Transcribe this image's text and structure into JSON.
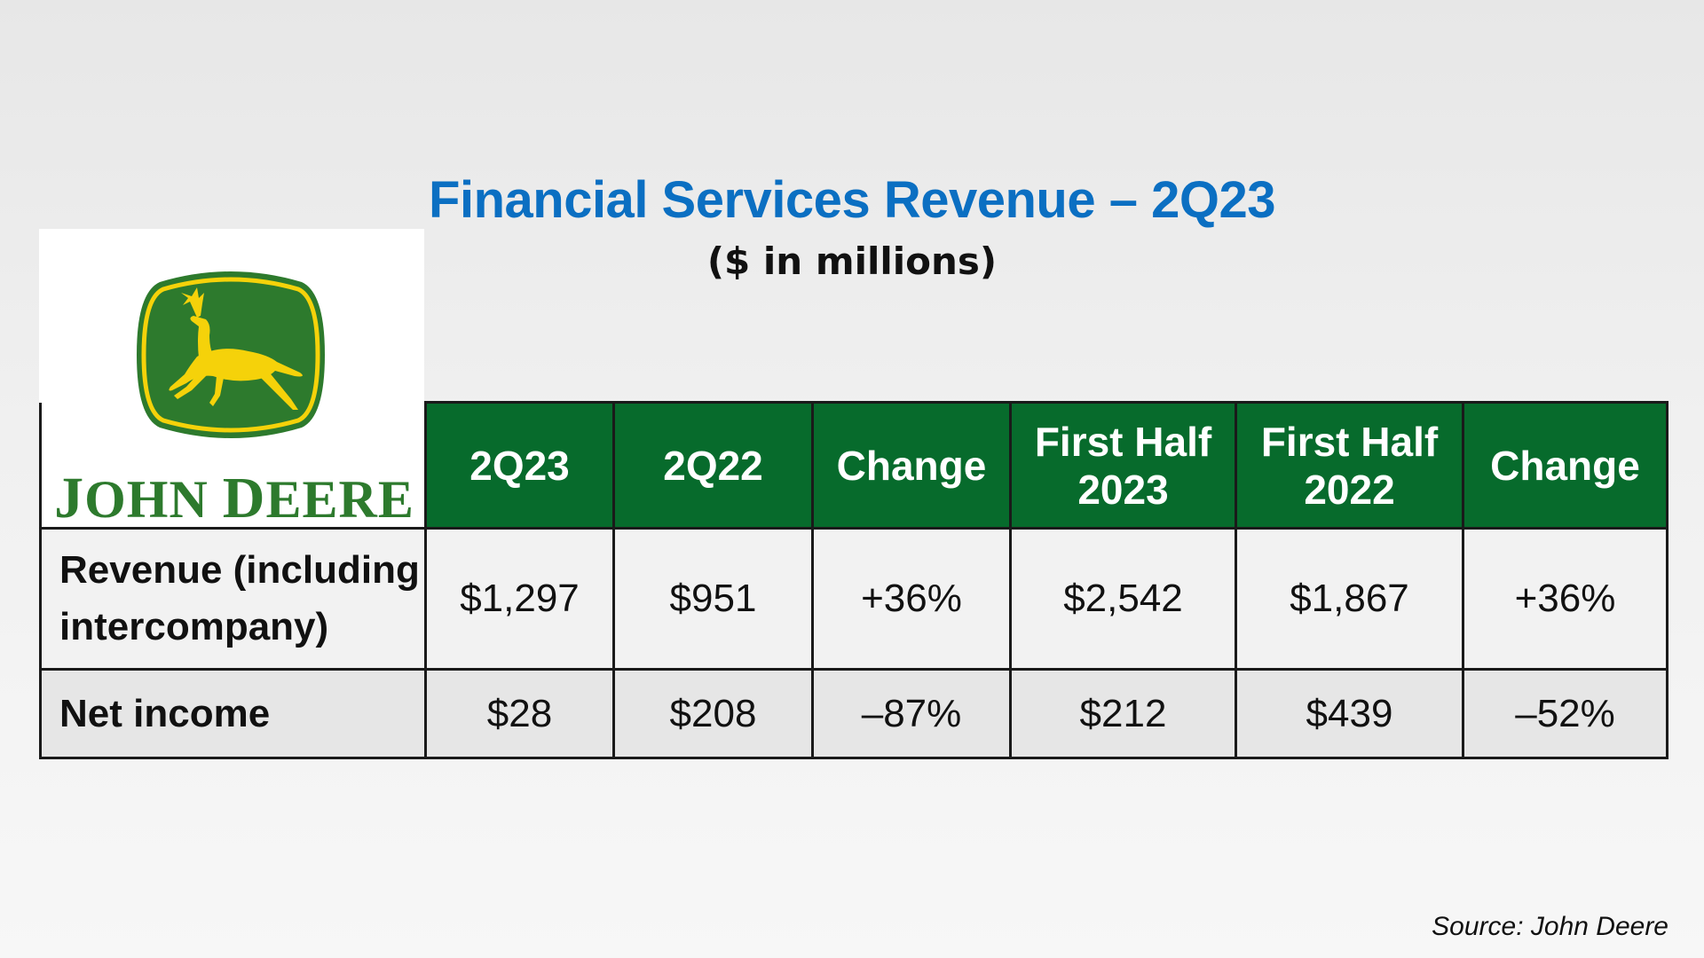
{
  "colors": {
    "title_blue": "#0b6fc2",
    "header_green": "#076b2c",
    "logo_green": "#2d7a2d",
    "logo_yellow": "#f5d20a"
  },
  "logo": {
    "icon": "leaping-deer-logo-icon",
    "brand": "JOHN DEERE",
    "brand_j": "J",
    "brand_ohn": "OHN ",
    "brand_d": "D",
    "brand_eere": "EERE"
  },
  "chart_data": {
    "type": "table",
    "title": "Financial Services Revenue – 2Q23",
    "subtitle": "($ in millions)",
    "columns": [
      "2Q23",
      "2Q22",
      "Change",
      "First Half 2023",
      "First Half 2022",
      "Change"
    ],
    "header_lines": [
      [
        "2Q23"
      ],
      [
        "2Q22"
      ],
      [
        "Change"
      ],
      [
        "First Half",
        "2023"
      ],
      [
        "First Half",
        "2022"
      ],
      [
        "Change"
      ]
    ],
    "rows": [
      {
        "label_lines": [
          "Revenue (including",
          "intercompany)"
        ],
        "values": [
          "$1,297",
          "$951",
          "+36%",
          "$2,542",
          "$1,867",
          "+36%"
        ]
      },
      {
        "label_lines": [
          "Net income"
        ],
        "values": [
          "$28",
          "$208",
          "–87%",
          "$212",
          "$439",
          "–52%"
        ]
      }
    ],
    "source": "Source: John Deere"
  }
}
